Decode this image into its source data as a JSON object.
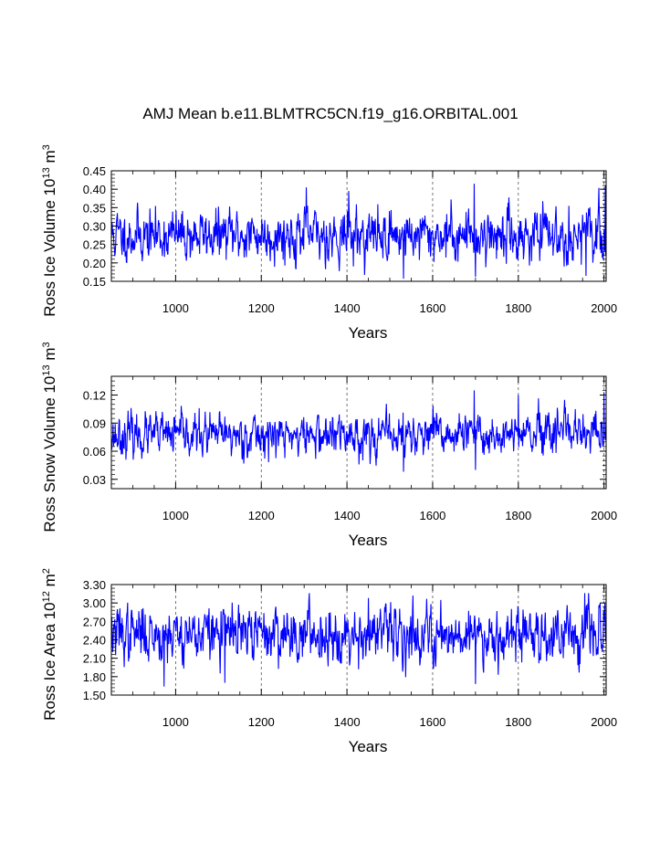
{
  "title": "AMJ Mean b.e11.BLMTRC5CN.f19_g16.ORBITAL.001",
  "line_color": "#0000ff",
  "chart_data": [
    {
      "type": "line",
      "id": "ice-volume",
      "ylabel_parts": [
        "Ross Ice Volume 10",
        "13",
        " m",
        "3"
      ],
      "xlabel": "Years",
      "xlim": [
        850,
        2005
      ],
      "x_ticks": [
        1000,
        1200,
        1400,
        1600,
        1800,
        2000
      ],
      "ylim": [
        0.15,
        0.45
      ],
      "y_ticks": [
        "0.15",
        "0.20",
        "0.25",
        "0.30",
        "0.35",
        "0.40",
        "0.45"
      ],
      "y_minor_step": 0.01,
      "dashed_gridlines_at": [
        1000,
        1200,
        1400,
        1600,
        1800,
        2000
      ],
      "series": {
        "name": "Ross Ice Volume",
        "x_start": 850,
        "x_end": 2005,
        "step": 1,
        "mean": 0.275,
        "sd": 0.034,
        "min": 0.155,
        "max": 0.415,
        "seed": 11
      },
      "events": [
        {
          "x": 1305,
          "y": 0.405
        },
        {
          "x": 1404,
          "y": 0.395
        },
        {
          "x": 1532,
          "y": 0.157
        },
        {
          "x": 1697,
          "y": 0.415
        },
        {
          "x": 1700,
          "y": 0.162
        },
        {
          "x": 1958,
          "y": 0.165
        },
        {
          "x": 2003,
          "y": 0.41
        }
      ]
    },
    {
      "type": "line",
      "id": "snow-volume",
      "ylabel_parts": [
        "Ross Snow Volume 10",
        "13",
        " m",
        "3"
      ],
      "xlabel": "Years",
      "xlim": [
        850,
        2005
      ],
      "x_ticks": [
        1000,
        1200,
        1400,
        1600,
        1800,
        2000
      ],
      "ylim": [
        0.02,
        0.14
      ],
      "y_ticks": [
        "0.03",
        "0.06",
        "0.09",
        "0.12"
      ],
      "y_tick_values": [
        0.03,
        0.06,
        0.09,
        0.12
      ],
      "y_minor_step": 0.005,
      "dashed_gridlines_at": [
        1000,
        1200,
        1400,
        1600,
        1800,
        2000
      ],
      "series": {
        "name": "Ross Snow Volume",
        "x_start": 850,
        "x_end": 2005,
        "step": 1,
        "mean": 0.077,
        "sd": 0.011,
        "min": 0.038,
        "max": 0.125,
        "seed": 23
      },
      "events": [
        {
          "x": 1532,
          "y": 0.038
        },
        {
          "x": 1697,
          "y": 0.125
        },
        {
          "x": 1700,
          "y": 0.04
        },
        {
          "x": 1800,
          "y": 0.12
        },
        {
          "x": 2000,
          "y": 0.123
        }
      ]
    },
    {
      "type": "line",
      "id": "ice-area",
      "ylabel_parts": [
        "Ross Ice Area 10",
        "12",
        " m",
        "2"
      ],
      "xlabel": "Years",
      "xlim": [
        850,
        2005
      ],
      "x_ticks": [
        1000,
        1200,
        1400,
        1600,
        1800,
        2000
      ],
      "ylim": [
        1.5,
        3.3
      ],
      "y_ticks": [
        "1.50",
        "1.80",
        "2.10",
        "2.40",
        "2.70",
        "3.00",
        "3.30"
      ],
      "y_minor_step": 0.06,
      "dashed_gridlines_at": [
        1000,
        1200,
        1400,
        1600,
        1800,
        2000
      ],
      "series": {
        "name": "Ross Ice Area",
        "x_start": 850,
        "x_end": 2005,
        "step": 1,
        "mean": 2.5,
        "sd": 0.22,
        "min": 1.62,
        "max": 3.16,
        "seed": 37
      },
      "events": [
        {
          "x": 973,
          "y": 1.64
        },
        {
          "x": 1115,
          "y": 1.7
        },
        {
          "x": 1450,
          "y": 3.08
        },
        {
          "x": 1700,
          "y": 1.68
        },
        {
          "x": 1955,
          "y": 3.16
        }
      ]
    }
  ]
}
